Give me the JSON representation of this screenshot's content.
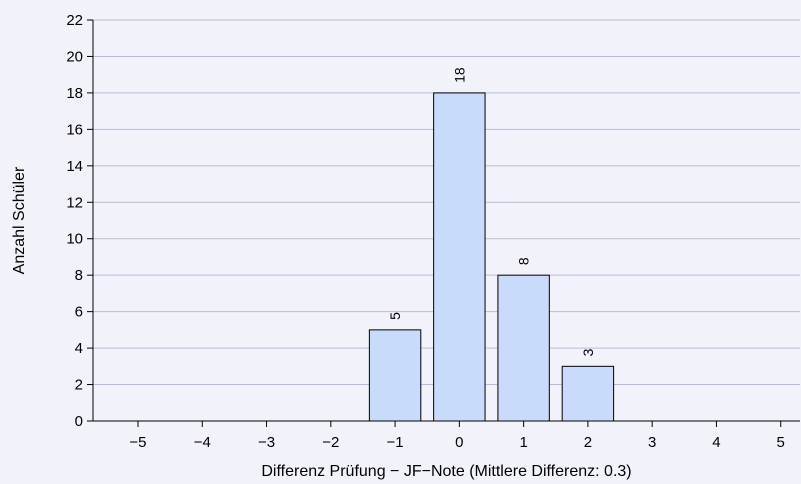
{
  "chart_data": {
    "type": "bar",
    "categories": [
      "−5",
      "−4",
      "−3",
      "−2",
      "−1",
      "0",
      "1",
      "2",
      "3",
      "4",
      "5"
    ],
    "x": [
      -5,
      -4,
      -3,
      -2,
      -1,
      0,
      1,
      2,
      3,
      4,
      5
    ],
    "values": [
      0,
      0,
      0,
      0,
      5,
      18,
      8,
      3,
      0,
      0,
      0
    ],
    "data_labels": [
      "",
      "",
      "",
      "",
      "5",
      "18",
      "8",
      "3",
      "",
      "",
      ""
    ],
    "title": "",
    "xlabel": "Differenz Prüfung − JF−Note (Mittlere Differenz: 0.3)",
    "ylabel": "Anzahl Schüler",
    "ylim": [
      0,
      22
    ],
    "yticks": [
      0,
      2,
      4,
      6,
      8,
      10,
      12,
      14,
      16,
      18,
      20,
      22
    ],
    "grid": true,
    "colors": {
      "bar": "#c9dbfa",
      "background": "#f2f2fb",
      "grid": "#b8bdd6"
    }
  }
}
